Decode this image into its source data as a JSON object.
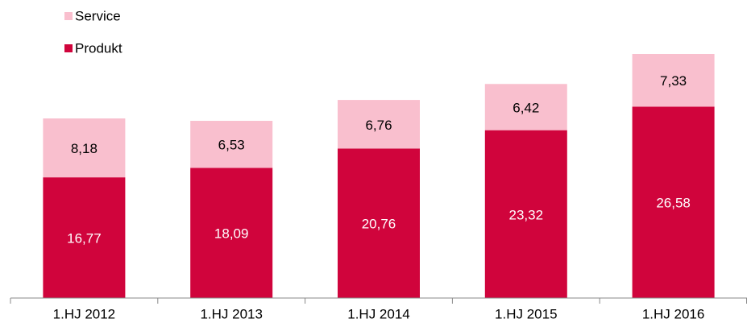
{
  "chart_data": {
    "type": "stacked_bar",
    "categories": [
      "1.HJ 2012",
      "1.HJ 2013",
      "1.HJ 2014",
      "1.HJ 2015",
      "1.HJ 2016"
    ],
    "series": [
      {
        "name": "Produkt",
        "color": "#d0043c",
        "values": [
          16.77,
          18.09,
          20.76,
          23.32,
          26.58
        ],
        "value_labels": [
          "16,77",
          "18,09",
          "20,76",
          "23,32",
          "26,58"
        ]
      },
      {
        "name": "Service",
        "color": "#f9bfce",
        "values": [
          8.18,
          6.53,
          6.76,
          6.42,
          7.33
        ],
        "value_labels": [
          "8,18",
          "6,53",
          "6,76",
          "6,42",
          "7,33"
        ]
      }
    ]
  }
}
